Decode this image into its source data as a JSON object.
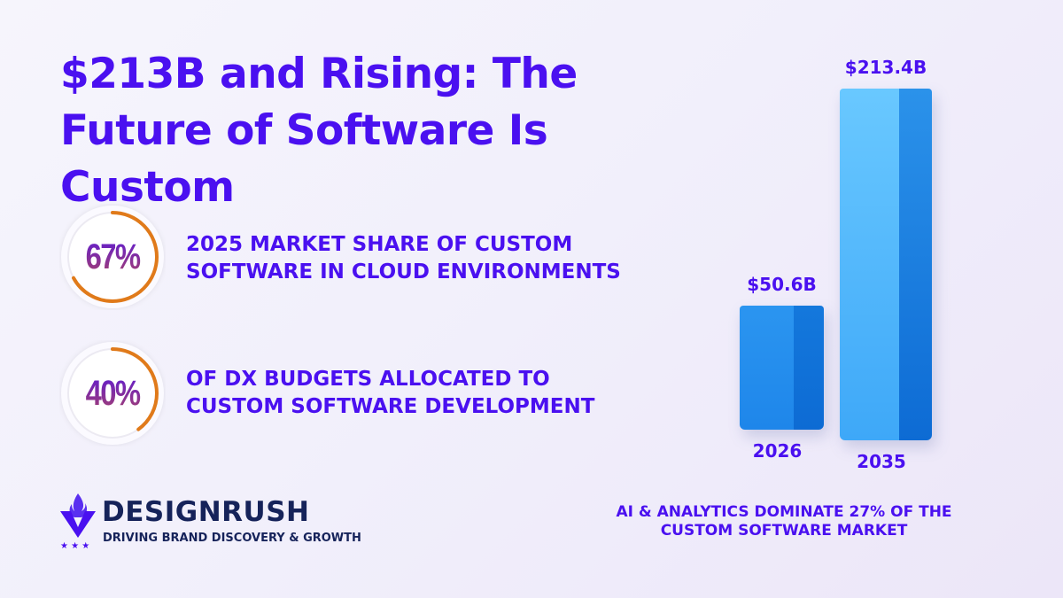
{
  "title": "$213B and Rising: The Future of Software Is Custom",
  "stats": [
    {
      "value": "67%",
      "fraction": 0.67,
      "text_line1": "2025 MARKET SHARE OF CUSTOM",
      "text_line2": "SOFTWARE IN CLOUD ENVIRONMENTS"
    },
    {
      "value": "40%",
      "fraction": 0.4,
      "text_line1": "OF DX BUDGETS ALLOCATED TO",
      "text_line2": "CUSTOM SOFTWARE DEVELOPMENT"
    }
  ],
  "colors": {
    "accent": "#4a10f0",
    "ring": "#e07a1a",
    "bar": "#2f9bf0",
    "brand": "#16235a"
  },
  "chart_data": {
    "type": "bar",
    "categories": [
      "2026",
      "2035"
    ],
    "values": [
      50.6,
      213.4
    ],
    "value_labels": [
      "$50.6B",
      "$213.4B"
    ],
    "title": "",
    "xlabel": "",
    "ylabel": "",
    "grid": false
  },
  "footnote": {
    "line1": "AI & ANALYTICS DOMINATE 27% OF THE",
    "line2": "CUSTOM SOFTWARE MARKET"
  },
  "brand": {
    "name": "DESIGNRUSH",
    "tagline": "DRIVING BRAND DISCOVERY & GROWTH",
    "icon": "torch-v-logo"
  }
}
